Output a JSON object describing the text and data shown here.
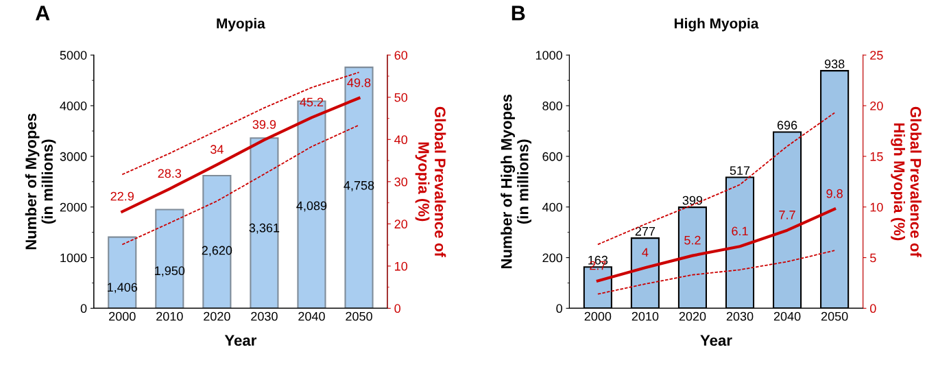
{
  "chart_data": [
    {
      "type": "bar",
      "title": "Myopia",
      "annotations": [
        "A"
      ],
      "xlabel": "Year",
      "ylabel": "Number of Myopes\n(in millions)",
      "y2label": "Global Prevalence of\nMyopia (%)",
      "categories": [
        "2000",
        "2010",
        "2020",
        "2030",
        "2040",
        "2050"
      ],
      "ylim": [
        0,
        5000
      ],
      "yticks": [
        0,
        1000,
        2000,
        3000,
        4000,
        5000
      ],
      "y2lim": [
        0,
        60
      ],
      "y2ticks": [
        0,
        10,
        20,
        30,
        40,
        50,
        60
      ],
      "legend": false,
      "grid": false,
      "series": [
        {
          "color": "#a9cdf0",
          "values": [
            1406,
            1950,
            2620,
            3361,
            4089,
            4758
          ],
          "value_labels": [
            "1,406",
            "1,950",
            "2,620",
            "3,361",
            "4,089",
            "4,758"
          ]
        },
        {
          "type": "line",
          "axis": "y2",
          "color": "#cc0000",
          "line_style": "solid",
          "values": [
            22.9,
            28.3,
            34,
            39.9,
            45.2,
            49.8
          ],
          "value_labels": [
            "22.9",
            "28.3",
            "34",
            "39.9",
            "45.2",
            "49.8"
          ]
        },
        {
          "type": "line",
          "axis": "y2",
          "color": "#cc0000",
          "line_style": "dashed",
          "values": [
            31.7,
            36.7,
            42.1,
            47.5,
            52.3,
            55.9
          ]
        },
        {
          "type": "line",
          "axis": "y2",
          "color": "#cc0000",
          "line_style": "dashed",
          "values": [
            15.1,
            20.2,
            25.4,
            31.8,
            38.3,
            43.4
          ]
        }
      ]
    },
    {
      "type": "bar",
      "title": "High Myopia",
      "annotations": [
        "B"
      ],
      "xlabel": "Year",
      "ylabel": "Number of High Myopes\n(in millions)",
      "y2label": "Global Prevalence of\nHigh Myopia (%)",
      "categories": [
        "2000",
        "2010",
        "2020",
        "2030",
        "2040",
        "2050"
      ],
      "ylim": [
        0,
        1000
      ],
      "yticks": [
        0,
        200,
        400,
        600,
        800,
        1000
      ],
      "y2lim": [
        0,
        25
      ],
      "y2ticks": [
        0,
        5,
        10,
        15,
        20,
        25
      ],
      "legend": false,
      "grid": false,
      "series": [
        {
          "color": "#9dc3e6",
          "values": [
            163,
            277,
            399,
            517,
            696,
            938
          ],
          "value_labels": [
            "163",
            "277",
            "399",
            "517",
            "696",
            "938"
          ]
        },
        {
          "type": "line",
          "axis": "y2",
          "color": "#cc0000",
          "line_style": "solid",
          "values": [
            2.7,
            4,
            5.2,
            6.1,
            7.7,
            9.8
          ],
          "value_labels": [
            "2.7",
            "4",
            "5.2",
            "6.1",
            "7.7",
            "9.8"
          ]
        },
        {
          "type": "line",
          "axis": "y2",
          "color": "#cc0000",
          "line_style": "dashed",
          "values": [
            6.3,
            8.3,
            10.2,
            12.2,
            16.0,
            19.3
          ]
        },
        {
          "type": "line",
          "axis": "y2",
          "color": "#cc0000",
          "line_style": "dashed",
          "values": [
            1.4,
            2.4,
            3.3,
            3.8,
            4.6,
            5.7
          ]
        }
      ]
    }
  ]
}
